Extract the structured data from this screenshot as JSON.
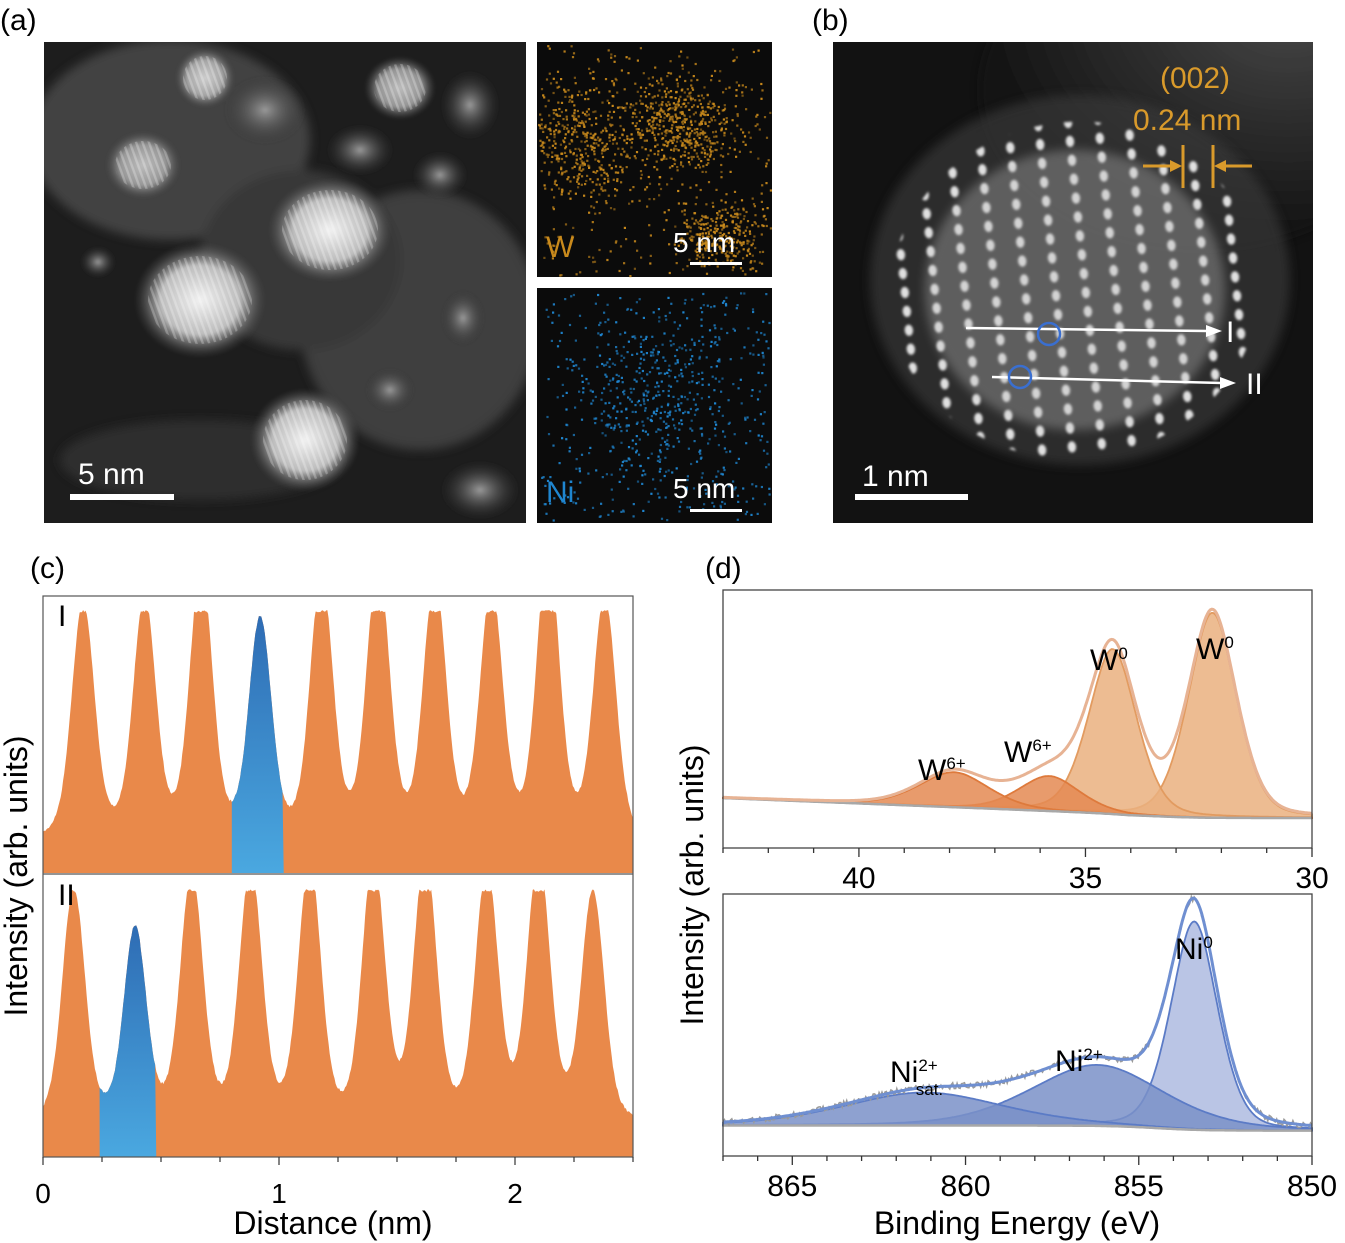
{
  "panels": {
    "a": {
      "label": "(a)",
      "main_scale": "5 nm",
      "w_map": {
        "element": "W",
        "scale": "5 nm",
        "color": "#c98a1c"
      },
      "ni_map": {
        "element": "Ni",
        "scale": "5 nm",
        "color": "#1f86d0"
      }
    },
    "b": {
      "label": "(b)",
      "plane": "(002)",
      "spacing": "0.24 nm",
      "line_I": "I",
      "line_II": "II",
      "scale": "1 nm",
      "annotation_color": "#d99a2b"
    },
    "c": {
      "label": "(c)"
    },
    "d": {
      "label": "(d)"
    }
  },
  "chart_data": [
    {
      "type": "area",
      "id": "c-I",
      "title": "I",
      "ylabel": "Intensity (arb. units)",
      "xlabel": "Distance (nm)",
      "xlim": [
        0,
        2.5
      ],
      "xticks": [
        0,
        1,
        2
      ],
      "x_tick_labels": [
        "0",
        "1",
        "2"
      ],
      "peaks_nm": [
        0.17,
        0.43,
        0.67,
        0.92,
        1.18,
        1.42,
        1.66,
        1.9,
        2.14,
        2.38
      ],
      "peak_heights": [
        0.8,
        0.82,
        0.92,
        0.75,
        0.9,
        0.94,
        0.88,
        0.85,
        0.98,
        0.82
      ],
      "highlight_range_nm": [
        0.8,
        1.02
      ],
      "colors": {
        "fill": "#e9894a",
        "highlight_top": "#2e6cb4",
        "highlight_bottom": "#4aa8e0"
      }
    },
    {
      "type": "area",
      "id": "c-II",
      "title": "II",
      "xlim": [
        0,
        2.5
      ],
      "peaks_nm": [
        0.13,
        0.39,
        0.63,
        0.88,
        1.13,
        1.4,
        1.62,
        1.88,
        2.1,
        2.33
      ],
      "peak_heights": [
        0.78,
        0.65,
        0.83,
        0.85,
        0.87,
        0.88,
        0.89,
        0.85,
        0.88,
        0.77
      ],
      "highlight_range_nm": [
        0.24,
        0.48
      ],
      "colors": {
        "fill": "#e9894a",
        "highlight_top": "#2e6cb4",
        "highlight_bottom": "#4aa8e0"
      }
    },
    {
      "type": "line",
      "id": "d-W4f",
      "xlabel": "Binding Energy (eV)",
      "ylabel": "Intensity (arb. units)",
      "xlim": [
        43,
        30
      ],
      "xticks": [
        40,
        35,
        30
      ],
      "x_tick_labels": [
        "40",
        "35",
        "30"
      ],
      "components": [
        {
          "label": "W0",
          "label_main": "W",
          "label_sup": "0",
          "center": 32.2,
          "height": 0.82,
          "width": 0.55
        },
        {
          "label": "W0",
          "label_main": "W",
          "label_sup": "0",
          "center": 34.4,
          "height": 0.66,
          "width": 0.55
        },
        {
          "label": "W6+",
          "label_main": "W",
          "label_sup": "6+",
          "center": 35.8,
          "height": 0.14,
          "width": 0.7
        },
        {
          "label": "W6+",
          "label_main": "W",
          "label_sup": "6+",
          "center": 37.9,
          "height": 0.14,
          "width": 0.8
        }
      ],
      "colors": {
        "peak_fill": "#eab07f",
        "oxide_fill": "#e48a52",
        "envelope": "#e7b394",
        "background": "#a8a8a8"
      }
    },
    {
      "type": "line",
      "id": "d-Ni2p",
      "xlabel": "Binding Energy (eV)",
      "xlim": [
        867,
        850
      ],
      "xticks": [
        865,
        860,
        855,
        850
      ],
      "x_tick_labels": [
        "865",
        "860",
        "855",
        "850"
      ],
      "components": [
        {
          "label": "Ni0",
          "label_main": "Ni",
          "label_sup": "0",
          "center": 853.4,
          "height": 0.82,
          "width": 0.7
        },
        {
          "label": "Ni2+",
          "label_main": "Ni",
          "label_sup": "2+",
          "center": 856.2,
          "height": 0.24,
          "width": 2.0
        },
        {
          "label": "Ni2+ sat.",
          "label_main": "Ni",
          "label_sup": "2+",
          "label_sub": "sat.",
          "center": 861.2,
          "height": 0.13,
          "width": 2.4
        }
      ],
      "colors": {
        "peak_fill": "#aebbe0",
        "component_fill": "#7a90c8",
        "envelope": "#6f8fd1",
        "raw": "#9a9a9a"
      }
    }
  ]
}
